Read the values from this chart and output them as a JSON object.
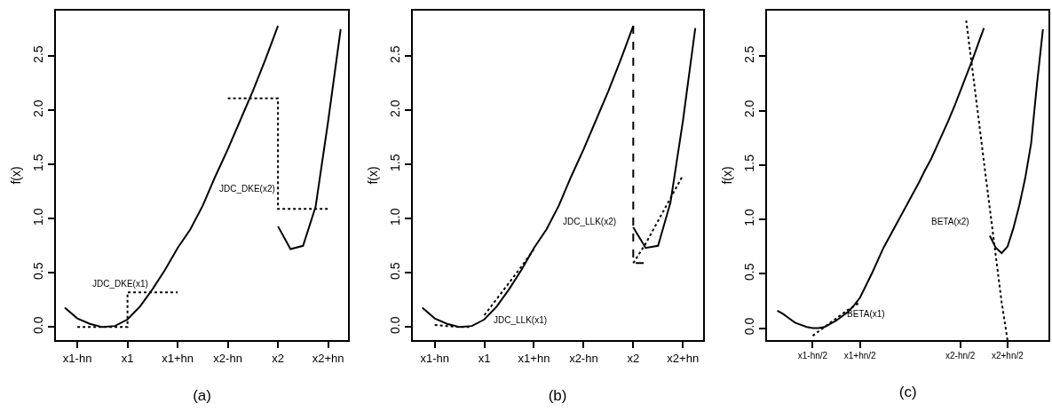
{
  "chart_data": [
    {
      "type": "line",
      "xlabel": "(a)",
      "ylabel": "f(x)",
      "ylim": [
        -0.12,
        2.92
      ],
      "categories": [
        null,
        "x1-hn",
        null,
        null,
        null,
        "x1",
        null,
        null,
        null,
        "x1+hn",
        null,
        null,
        null,
        "x2-hn",
        null,
        null,
        null,
        "x2",
        null,
        null,
        null,
        "x2+hn",
        null
      ],
      "yticks": [
        {
          "value": 0,
          "label": "0.0"
        },
        {
          "value": 0.5,
          "label": "0.5"
        },
        {
          "value": 1,
          "label": "1.0"
        },
        {
          "value": 1.5,
          "label": "1.5"
        },
        {
          "value": 2,
          "label": "2.0"
        },
        {
          "value": 2.5,
          "label": "2.5"
        }
      ],
      "series": [
        {
          "color": "#000000",
          "line_style": "solid",
          "values": [
            0.18,
            0.08,
            0.03,
            0.0,
            0.01,
            0.07,
            0.19,
            0.35,
            0.53,
            0.73,
            0.9,
            1.12,
            1.39,
            1.64,
            1.91,
            2.18,
            2.47,
            2.78,
            null,
            null,
            null,
            null,
            null
          ]
        },
        {
          "color": "#000000",
          "line_style": "solid",
          "values": [
            null,
            null,
            null,
            null,
            null,
            null,
            null,
            null,
            null,
            null,
            null,
            null,
            null,
            null,
            null,
            null,
            null,
            0.93,
            0.72,
            0.75,
            1.11,
            1.9,
            2.75
          ]
        },
        {
          "type": "step",
          "color": "#000000",
          "line_style": "dotted",
          "values": [
            null,
            0,
            0,
            0,
            0,
            0,
            0.32,
            0.32,
            0.32,
            0.32,
            null,
            null,
            null,
            2.11,
            2.11,
            2.11,
            2.11,
            2.11,
            1.09,
            1.09,
            1.09,
            1.09,
            null
          ]
        }
      ],
      "annotations": [
        "JDC_DKE(x1)",
        "JDC_DKE(x2)"
      ]
    },
    {
      "type": "line",
      "xlabel": "(b)",
      "ylabel": "f(x)",
      "ylim": [
        -0.12,
        2.92
      ],
      "categories": [
        null,
        "x1-hn",
        null,
        null,
        null,
        "x1",
        null,
        null,
        null,
        "x1+hn",
        null,
        null,
        null,
        "x2-hn",
        null,
        null,
        null,
        "x2",
        null,
        null,
        null,
        "x2+hn",
        null
      ],
      "yticks": [
        {
          "value": 0,
          "label": "0.0"
        },
        {
          "value": 0.5,
          "label": "0.5"
        },
        {
          "value": 1,
          "label": "1.0"
        },
        {
          "value": 1.5,
          "label": "1.5"
        },
        {
          "value": 2,
          "label": "2.0"
        },
        {
          "value": 2.5,
          "label": "2.5"
        }
      ],
      "series": [
        {
          "color": "#000000",
          "line_style": "solid",
          "values": [
            0.18,
            0.08,
            0.03,
            0.0,
            0.01,
            0.07,
            0.19,
            0.35,
            0.53,
            0.73,
            0.9,
            1.12,
            1.39,
            1.64,
            1.91,
            2.18,
            2.47,
            2.78,
            null,
            null,
            null,
            null,
            null
          ]
        },
        {
          "type": "step",
          "color": "#000000",
          "line_style": "dashed",
          "values": [
            null,
            null,
            null,
            null,
            null,
            null,
            null,
            null,
            null,
            null,
            null,
            null,
            null,
            null,
            null,
            null,
            null,
            2.78,
            0.59,
            null,
            null,
            null,
            null
          ]
        },
        {
          "color": "#000000",
          "line_style": "solid",
          "values": [
            null,
            null,
            null,
            null,
            null,
            null,
            null,
            null,
            null,
            null,
            null,
            null,
            null,
            null,
            null,
            null,
            null,
            0.92,
            0.73,
            0.75,
            1.15,
            1.9,
            2.76
          ]
        },
        {
          "color": "#000000",
          "line_style": "dotted",
          "values": [
            null,
            0.02,
            0.01,
            0,
            0,
            null,
            null,
            null,
            null,
            null,
            null,
            null,
            null,
            null,
            null,
            null,
            null,
            null,
            null,
            null,
            null,
            null,
            null
          ]
        },
        {
          "color": "#000000",
          "line_style": "dotted",
          "values": [
            null,
            null,
            null,
            null,
            null,
            0.11,
            0.26,
            0.41,
            0.56,
            0.72,
            null,
            null,
            null,
            null,
            null,
            null,
            null,
            null,
            null,
            null,
            null,
            null,
            null
          ]
        },
        {
          "color": "#000000",
          "line_style": "dotted",
          "values": [
            null,
            null,
            null,
            null,
            null,
            null,
            null,
            null,
            null,
            null,
            null,
            null,
            null,
            null,
            null,
            null,
            null,
            0.59,
            0.77,
            0.98,
            1.19,
            1.4,
            null
          ]
        }
      ],
      "annotations": [
        "JDC_LLK(x1)",
        "JDC_LLK(x2)"
      ]
    },
    {
      "type": "line",
      "xlabel": "(c)",
      "ylabel": "f(x)",
      "ylim": [
        -0.11,
        2.92
      ],
      "categories": [
        null,
        null,
        null,
        null,
        null,
        null,
        "x1-hn/2",
        null,
        null,
        null,
        null,
        null,
        null,
        null,
        "x1+hn/2",
        null,
        null,
        null,
        null,
        null,
        null,
        null,
        null,
        null,
        null,
        null,
        null,
        null,
        null,
        null,
        null,
        "x2-hn/2",
        null,
        null,
        null,
        null,
        null,
        null,
        null,
        "x2+hn/2",
        null,
        null,
        null,
        null,
        null,
        null
      ],
      "yticks": [
        {
          "value": 0,
          "label": "0.0"
        },
        {
          "value": 0.5,
          "label": "0.5"
        },
        {
          "value": 1,
          "label": "1.0"
        },
        {
          "value": 1.5,
          "label": "1.5"
        },
        {
          "value": 2,
          "label": "2.0"
        },
        {
          "value": 2.5,
          "label": "2.5"
        }
      ],
      "series": [
        {
          "color": "#000000",
          "line_style": "solid",
          "values": [
            0.16,
            0.13,
            0.09,
            0.05,
            0.03,
            0.01,
            0.0,
            0.0,
            0.01,
            0.04,
            0.07,
            0.11,
            0.15,
            0.21,
            0.28,
            0.39,
            0.5,
            0.62,
            0.74,
            0.84,
            0.94,
            1.04,
            1.14,
            1.24,
            1.34,
            1.45,
            1.55,
            1.67,
            1.79,
            1.91,
            2.04,
            2.18,
            2.32,
            2.46,
            2.61,
            2.76,
            null,
            null,
            null,
            null,
            null,
            null,
            null,
            null,
            null,
            null
          ]
        },
        {
          "color": "#000000",
          "line_style": "solid",
          "values": [
            null,
            null,
            null,
            null,
            null,
            null,
            null,
            null,
            null,
            null,
            null,
            null,
            null,
            null,
            null,
            null,
            null,
            null,
            null,
            null,
            null,
            null,
            null,
            null,
            null,
            null,
            null,
            null,
            null,
            null,
            null,
            null,
            null,
            null,
            null,
            null,
            0.85,
            0.74,
            0.69,
            0.75,
            0.92,
            1.13,
            1.38,
            1.7,
            2.25,
            2.75
          ]
        },
        {
          "color": "#000000",
          "line_style": "dotted",
          "values": [
            null,
            null,
            null,
            null,
            null,
            null,
            -0.07,
            -0.03,
            0.01,
            0.05,
            0.09,
            0.13,
            0.17,
            0.2,
            0.24,
            null,
            null,
            null,
            null,
            null,
            null,
            null,
            null,
            null,
            null,
            null,
            null,
            null,
            null,
            null,
            null,
            null,
            null,
            null,
            null,
            null,
            null,
            null,
            null,
            null,
            null,
            null,
            null,
            null,
            null,
            null
          ]
        },
        {
          "color": "#000000",
          "line_style": "dotted",
          "values": [
            null,
            null,
            null,
            null,
            null,
            null,
            null,
            null,
            null,
            null,
            null,
            null,
            null,
            null,
            null,
            null,
            null,
            null,
            null,
            null,
            null,
            null,
            null,
            null,
            null,
            null,
            null,
            null,
            null,
            null,
            null,
            null,
            2.83,
            2.4,
            1.97,
            1.53,
            1.1,
            0.67,
            0.24,
            -0.11,
            null,
            null,
            null,
            null,
            null,
            null
          ]
        }
      ],
      "annotations": [
        "BETA(x1)",
        "BETA(x2)"
      ]
    }
  ]
}
